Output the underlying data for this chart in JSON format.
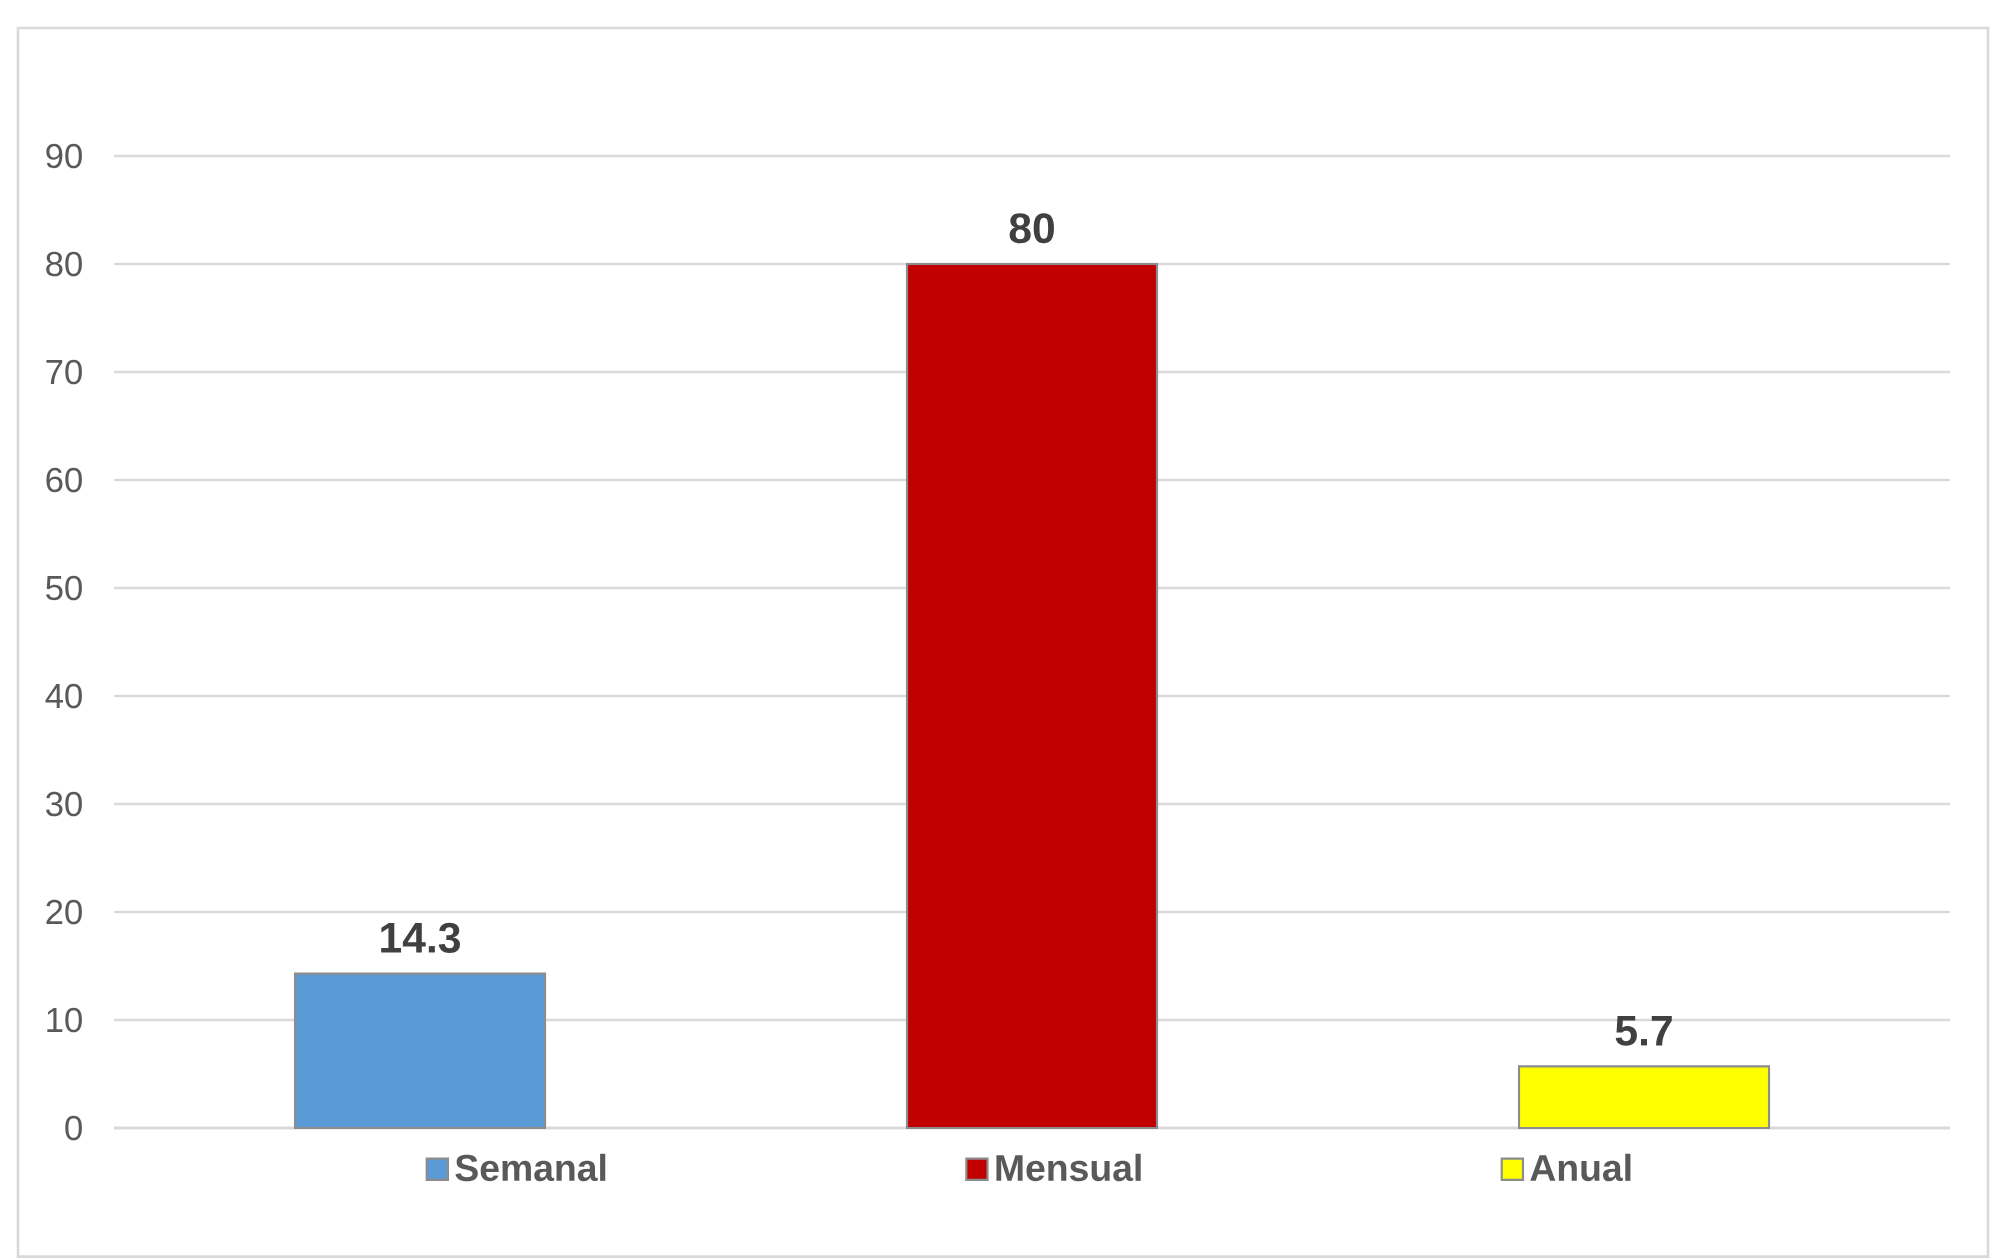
{
  "chart_data": {
    "type": "bar",
    "categories": [
      null
    ],
    "series": [
      {
        "name": "Semanal",
        "color": "#5b9bd5",
        "values": [
          14.3
        ]
      },
      {
        "name": "Mensual",
        "color": "#c00000",
        "values": [
          80
        ]
      },
      {
        "name": "Anual",
        "color": "#ffff00",
        "values": [
          5.7
        ]
      }
    ],
    "ylim": [
      0,
      90
    ],
    "yticks": [
      0,
      10,
      20,
      30,
      40,
      50,
      60,
      70,
      80,
      90
    ],
    "grid": "y",
    "data_labels": true,
    "legend": "bottom"
  }
}
